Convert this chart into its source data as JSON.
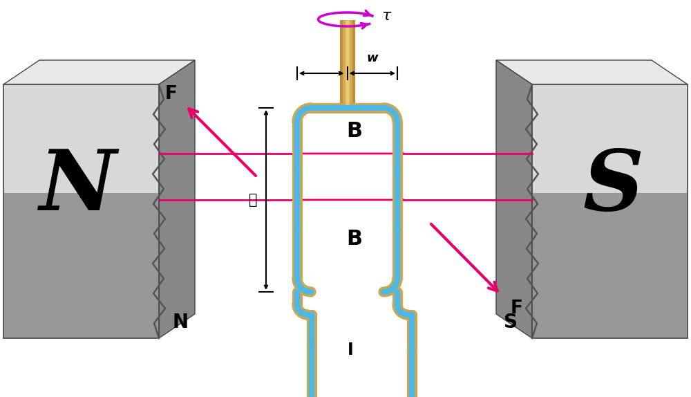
{
  "bg_color": "#ffffff",
  "loop_outer_color": "#c8a855",
  "loop_inner_color": "#4db8e8",
  "B_arrow_color": "#e8006a",
  "F_color": "#e8006a",
  "tau_color": "#cc00cc",
  "dim_color": "#000000",
  "label_N_big": "N",
  "label_N_small": "N",
  "label_S_big": "S",
  "label_S_small": "S",
  "label_B1": "B",
  "label_B2": "B",
  "label_F_left": "F",
  "label_F_right": "F",
  "label_tau": "τ",
  "label_w": "w",
  "label_l": "ℓ",
  "label_I": "I",
  "magnet_face_light": "#d8d8d8",
  "magnet_face_dark": "#888888",
  "magnet_top": "#e8e8e8",
  "magnet_edge": "#444444"
}
